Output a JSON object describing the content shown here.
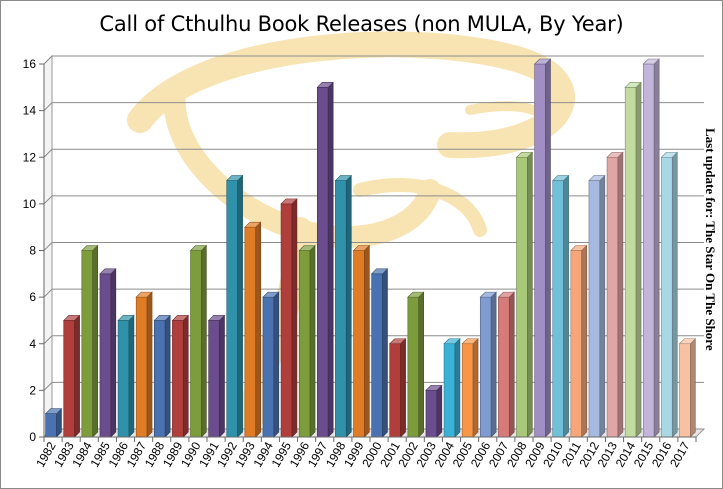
{
  "chart_data": {
    "type": "bar",
    "title": "Call of Cthulhu Book Releases (non MULA, By Year)",
    "side_note": "Last update for: The Star On The Shore",
    "xlabel": "",
    "ylabel": "",
    "ylim": [
      0,
      16
    ],
    "yticks": [
      0,
      2,
      4,
      6,
      8,
      10,
      12,
      14,
      16
    ],
    "grid": true,
    "legend": "none",
    "style": "3d-columns",
    "categories": [
      "1982",
      "1983",
      "1984",
      "1985",
      "1986",
      "1987",
      "1988",
      "1989",
      "1990",
      "1991",
      "1992",
      "1993",
      "1994",
      "1995",
      "1996",
      "1997",
      "1998",
      "1999",
      "2000",
      "2001",
      "2002",
      "2003",
      "2004",
      "2005",
      "2006",
      "2007",
      "2008",
      "2009",
      "2010",
      "2011",
      "2012",
      "2013",
      "2014",
      "2015",
      "2016",
      "2017"
    ],
    "values": [
      1,
      5,
      8,
      7,
      5,
      6,
      5,
      5,
      8,
      5,
      11,
      9,
      6,
      10,
      8,
      15,
      11,
      8,
      7,
      4,
      6,
      2,
      4,
      4,
      6,
      6,
      12,
      16,
      11,
      8,
      11,
      12,
      15,
      16,
      12,
      4
    ],
    "colors": [
      "#4a72b0",
      "#b03e3b",
      "#7d9d3c",
      "#6b4c8c",
      "#2f92aa",
      "#e07b26",
      "#4a72b0",
      "#b03e3b",
      "#7d9d3c",
      "#6b4c8c",
      "#2f92aa",
      "#e07b26",
      "#4a72b0",
      "#b03e3b",
      "#7d9d3c",
      "#6b4c8c",
      "#2f92aa",
      "#e07b26",
      "#4a72b0",
      "#b03e3b",
      "#7d9d3c",
      "#6b4c8c",
      "#3ab2d6",
      "#f79646",
      "#7f9bd0",
      "#d67a7a",
      "#a8c87a",
      "#a08ec4",
      "#6fc0d8",
      "#f5a77a",
      "#a6b9de",
      "#e0a5a5",
      "#c2dca0",
      "#c2b5d9",
      "#a8d8e6",
      "#f8c2a2"
    ]
  }
}
